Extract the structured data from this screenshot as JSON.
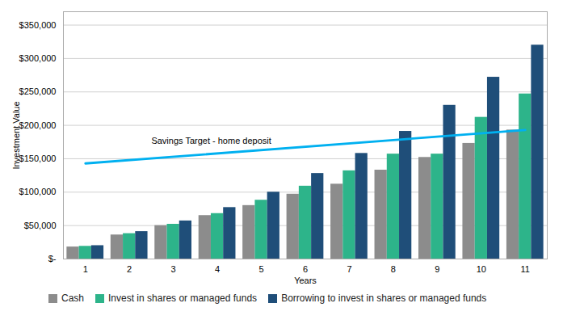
{
  "chart_data": {
    "type": "bar",
    "categories": [
      "1",
      "2",
      "3",
      "4",
      "5",
      "6",
      "7",
      "8",
      "9",
      "10",
      "11"
    ],
    "series": [
      {
        "name": "Cash",
        "color": "#8C8C8C",
        "values": [
          18000,
          36000,
          50000,
          65000,
          80000,
          97000,
          112000,
          133000,
          152000,
          173000,
          193000
        ]
      },
      {
        "name": "Invest in shares or managed funds",
        "color": "#2DB48A",
        "values": [
          19000,
          38000,
          52000,
          68000,
          88000,
          109000,
          132000,
          157000,
          157000,
          212000,
          247000
        ]
      },
      {
        "name": "Borrowing to invest in shares or managed funds",
        "color": "#1F4E79",
        "values": [
          20000,
          41000,
          57000,
          77000,
          100000,
          128000,
          158000,
          191000,
          230000,
          272000,
          320000
        ]
      }
    ],
    "reference_line": {
      "x": [
        "1",
        "11"
      ],
      "values": [
        143000,
        193000
      ],
      "color": "#00B0F0"
    },
    "annotations": [
      {
        "text": "Savings Target - home deposit",
        "y": 172000
      }
    ],
    "xlabel": "Years",
    "ylabel": "Investment Value",
    "ylim": [
      0,
      370000
    ],
    "yticks": [
      {
        "value": 0,
        "label": "$-"
      },
      {
        "value": 50000,
        "label": "$50,000"
      },
      {
        "value": 100000,
        "label": "$100,000"
      },
      {
        "value": 150000,
        "label": "$150,000"
      },
      {
        "value": 200000,
        "label": "$200,000"
      },
      {
        "value": 250000,
        "label": "$250,000"
      },
      {
        "value": 300000,
        "label": "$300,000"
      },
      {
        "value": 350000,
        "label": "$350,000"
      }
    ],
    "grid": true,
    "legend": "lower left"
  }
}
